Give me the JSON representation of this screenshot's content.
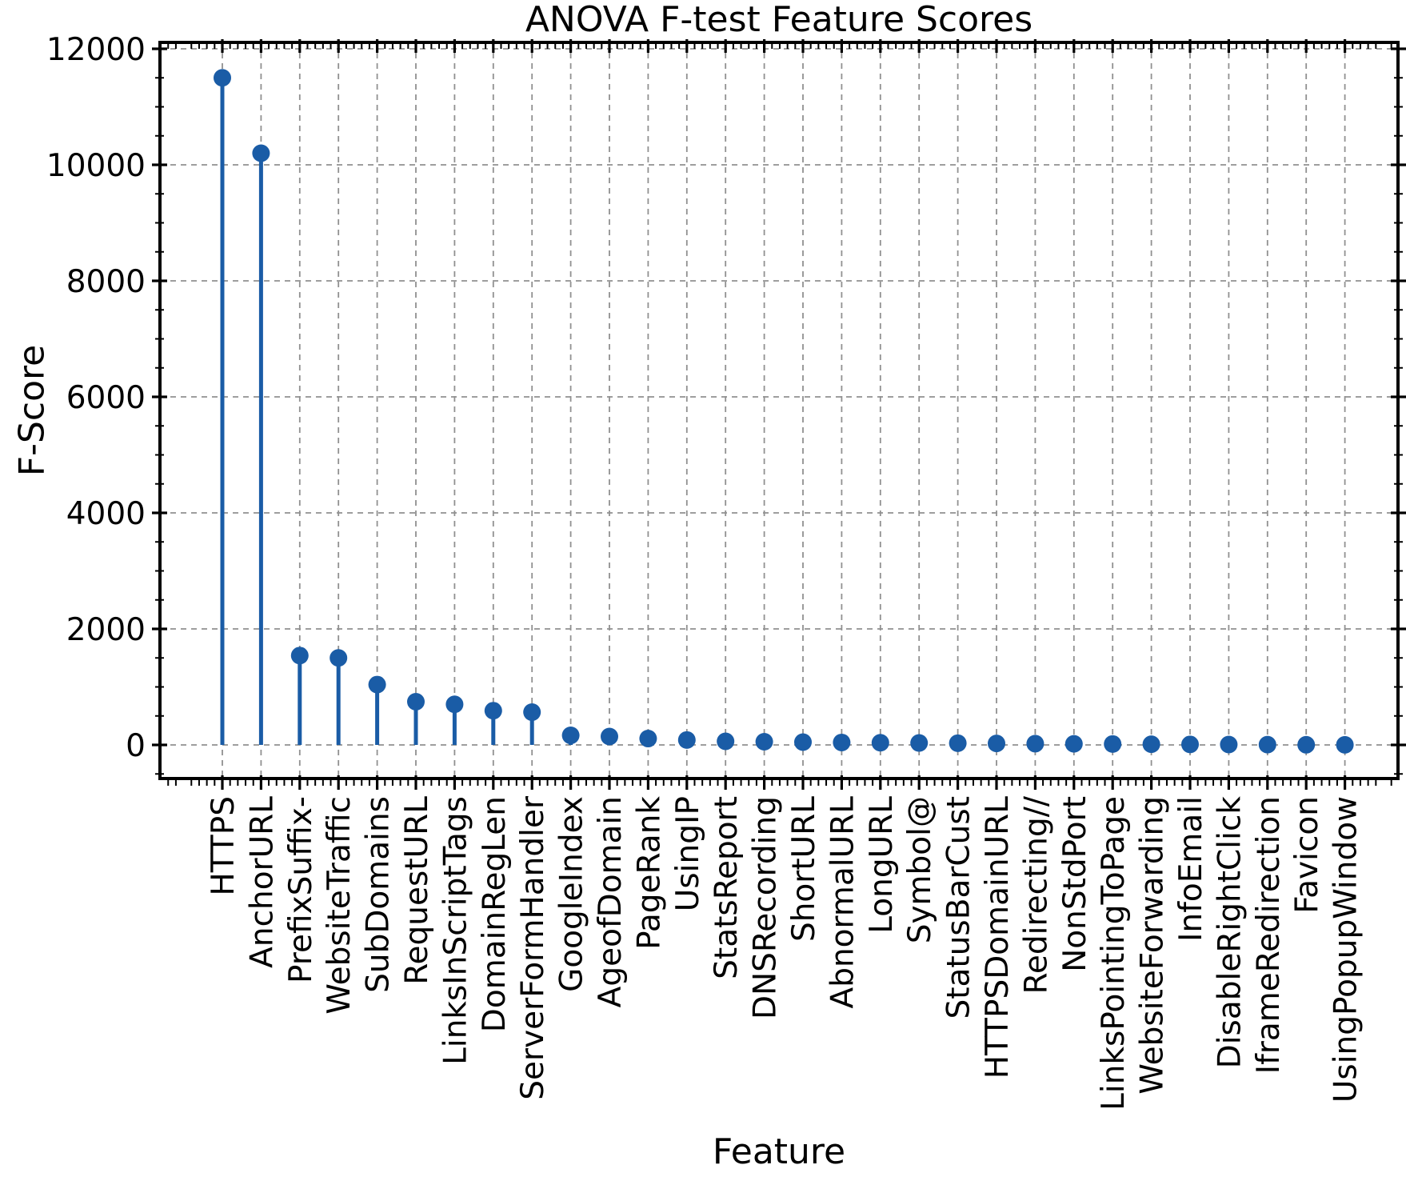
{
  "chart_data": {
    "type": "stem",
    "title": "ANOVA F-test Feature Scores",
    "xlabel": "Feature",
    "ylabel": "F-Score",
    "categories": [
      "HTTPS",
      "AnchorURL",
      "PrefixSuffix-",
      "WebsiteTraffic",
      "SubDomains",
      "RequestURL",
      "LinksInScriptTags",
      "DomainRegLen",
      "ServerFormHandler",
      "GoogleIndex",
      "AgeofDomain",
      "PageRank",
      "UsingIP",
      "StatsReport",
      "DNSRecording",
      "ShortURL",
      "AbnormalURL",
      "LongURL",
      "Symbol@",
      "StatusBarCust",
      "HTTPSDomainURL",
      "Redirecting//",
      "NonStdPort",
      "LinksPointingToPage",
      "WebsiteForwarding",
      "InfoEmail",
      "DisableRightClick",
      "IframeRedirection",
      "Favicon",
      "UsingPopupWindow"
    ],
    "values": [
      11500,
      10200,
      1540,
      1500,
      1040,
      745,
      700,
      590,
      565,
      165,
      145,
      110,
      85,
      62,
      55,
      48,
      42,
      38,
      34,
      30,
      26,
      22,
      19,
      16,
      12,
      9,
      7,
      5,
      3,
      2
    ],
    "yticks": [
      0,
      2000,
      4000,
      6000,
      8000,
      10000,
      12000
    ],
    "ytick_labels": [
      "0",
      "2000",
      "4000",
      "6000",
      "8000",
      "10000",
      "12000"
    ],
    "ylim": [
      -600,
      12100
    ],
    "y_minor_step": 500,
    "x_minor_per_interval": 5,
    "grid": "dashed, major gridlines on both axes",
    "legend_position": "none",
    "marker": "circle",
    "colors": {
      "stem": "#1a5ca6",
      "marker": "#1a5ca6",
      "grid": "#909090",
      "spine": "#000000",
      "text": "#000000"
    }
  }
}
